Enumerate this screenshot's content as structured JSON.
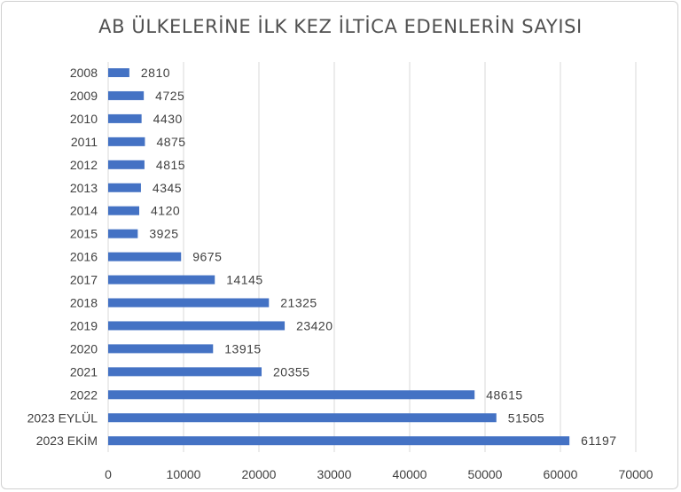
{
  "chart_data": {
    "type": "bar",
    "orientation": "horizontal",
    "title": "AB ÜLKELERİNE İLK KEZ İLTİCA EDENLERİN SAYISI",
    "categories": [
      "2008",
      "2009",
      "2010",
      "2011",
      "2012",
      "2013",
      "2014",
      "2015",
      "2016",
      "2017",
      "2018",
      "2019",
      "2020",
      "2021",
      "2022",
      "2023 EYLÜL",
      "2023 EKİM"
    ],
    "values": [
      2810,
      4725,
      4430,
      4875,
      4815,
      4345,
      4120,
      3925,
      9675,
      14145,
      21325,
      23420,
      13915,
      20355,
      48615,
      51505,
      61197
    ],
    "xlim": [
      0,
      70000
    ],
    "x_ticks": [
      0,
      10000,
      20000,
      30000,
      40000,
      50000,
      60000,
      70000
    ],
    "grid": true,
    "bar_color": "#4472c4",
    "grid_color": "#d9d9d9"
  }
}
